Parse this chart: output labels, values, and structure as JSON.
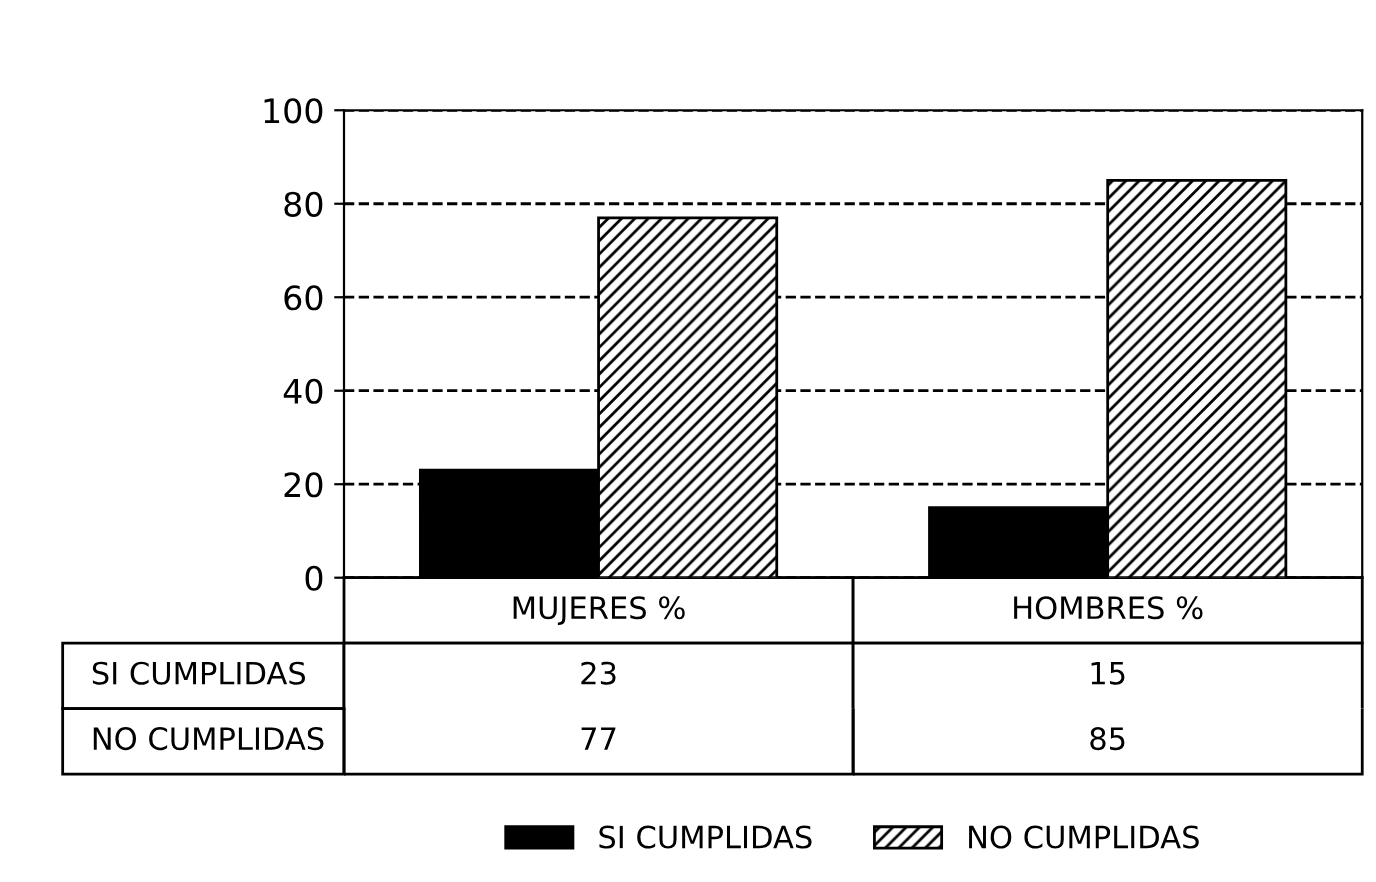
{
  "chart_data": {
    "type": "bar",
    "categories": [
      "MUJERES %",
      "HOMBRES %"
    ],
    "series": [
      {
        "name": "SI CUMPLIDAS",
        "color": "#000000",
        "values": [
          23,
          15
        ]
      },
      {
        "name": "NO CUMPLIDAS",
        "color": "#000000",
        "values": [
          77,
          85
        ]
      }
    ],
    "ylim": [
      0,
      100
    ],
    "yticks": [
      0,
      20,
      40,
      60,
      80,
      100
    ],
    "grid": "y",
    "legend": "bottom",
    "data_labels": true
  }
}
